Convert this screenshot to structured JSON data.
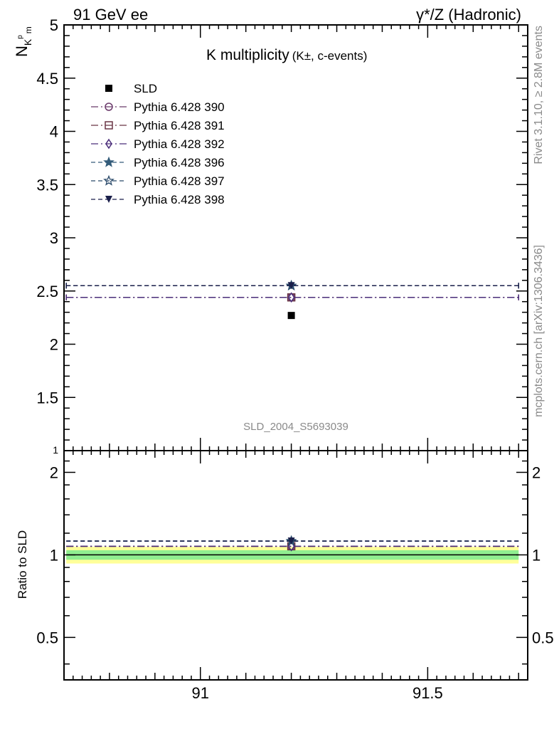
{
  "header": {
    "left": "91 GeV ee",
    "right": "γ*/Z (Hadronic)"
  },
  "side_labels": {
    "rivet": "Rivet 3.1.10, ≥ 2.8M events",
    "mcplots": "mcplots.cern.ch [arXiv:1306.3436]"
  },
  "analysis_id": "SLD_2004_S5693039",
  "chart_data": [
    {
      "type": "scatter",
      "title": "K multiplicity",
      "subtitle": "(K±, c-events)",
      "ylabel": "N",
      "ylabel_sub": "K",
      "ylabel_sup": "p",
      "ylabel_sub2": "m",
      "xlim": [
        90.7,
        91.72
      ],
      "ylim": [
        1,
        5
      ],
      "x_ticks": [
        "91",
        "91.5"
      ],
      "y_ticks": [
        "1",
        "1.5",
        "2",
        "2.5",
        "3",
        "3.5",
        "4",
        "4.5",
        "5"
      ],
      "x_range": [
        90.705,
        91.7
      ],
      "x_center": 91.2,
      "legend_position": "top-left",
      "series": [
        {
          "name": "SLD",
          "y": 2.27,
          "marker": "square-filled",
          "color": "#000000",
          "line": "none"
        },
        {
          "name": "Pythia 6.428 390",
          "y": 2.44,
          "marker": "circle-open",
          "color": "#6b3a6b",
          "line": "dashdot"
        },
        {
          "name": "Pythia 6.428 391",
          "y": 2.44,
          "marker": "square-open",
          "color": "#6a3545",
          "line": "dashdot"
        },
        {
          "name": "Pythia 6.428 392",
          "y": 2.44,
          "marker": "diamond-open",
          "color": "#4a2d7a",
          "line": "dashdot"
        },
        {
          "name": "Pythia 6.428 396",
          "y": 2.55,
          "marker": "star-filled",
          "color": "#345c7a",
          "line": "dashed"
        },
        {
          "name": "Pythia 6.428 397",
          "y": 2.55,
          "marker": "star-open",
          "color": "#2a4a6a",
          "line": "dashed"
        },
        {
          "name": "Pythia 6.428 398",
          "y": 2.55,
          "marker": "triangle-down-filled",
          "color": "#1a1f4a",
          "line": "dashed"
        }
      ]
    },
    {
      "type": "scatter",
      "title": "",
      "ylabel": "Ratio to SLD",
      "xlim": [
        90.7,
        91.72
      ],
      "ylim": [
        0.35,
        2.4
      ],
      "y_ticks": [
        "0.5",
        "1",
        "2"
      ],
      "x_ticks": [
        "91",
        "91.5"
      ],
      "bands": [
        {
          "label": "",
          "low": 0.93,
          "high": 1.07,
          "color": "#ffff99"
        },
        {
          "label": "",
          "low": 0.96,
          "high": 1.04,
          "color": "#90ee90"
        }
      ],
      "series": [
        {
          "name": "Pythia 6.428 390",
          "y": 1.075
        },
        {
          "name": "Pythia 6.428 391",
          "y": 1.075
        },
        {
          "name": "Pythia 6.428 392",
          "y": 1.075
        },
        {
          "name": "Pythia 6.428 396",
          "y": 1.123
        },
        {
          "name": "Pythia 6.428 397",
          "y": 1.123
        },
        {
          "name": "Pythia 6.428 398",
          "y": 1.123
        }
      ]
    }
  ]
}
